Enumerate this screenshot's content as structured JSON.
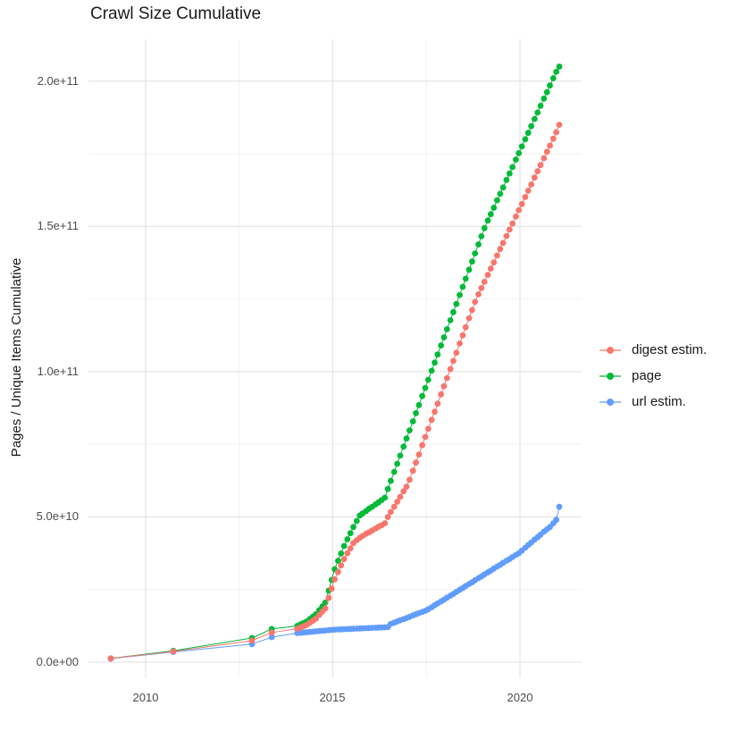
{
  "chart": {
    "title": "Crawl Size Cumulative",
    "y_axis_title": "Pages / Unique Items Cumulative"
  },
  "axes": {
    "x": {
      "labels": [
        "2010",
        "2015",
        "2020"
      ],
      "major_years": [
        2010,
        2015,
        2020
      ],
      "minor_years": [
        2012.5,
        2017.5
      ]
    },
    "y": {
      "labels": [
        "2.0e+11",
        "1.5e+11",
        "1.0e+11",
        "5.0e+10",
        "0.0e+00"
      ],
      "major_values_e9": [
        0,
        50,
        100,
        150,
        200
      ],
      "minor_values_e9": [
        25,
        75,
        125,
        175
      ]
    }
  },
  "legend": [
    {
      "label": "digest estim.",
      "color": "#F8766D"
    },
    {
      "label": "page",
      "color": "#00BA38"
    },
    {
      "label": "url estim.",
      "color": "#619CFF"
    }
  ],
  "colors": {
    "background": "#ffffff",
    "grid_major": "#e2e2e2",
    "grid_minor": "#efefef",
    "tick_text": "#4d4d4d",
    "digest": "#F8766D",
    "page": "#00BA38",
    "url": "#619CFF"
  },
  "chart_data": {
    "type": "line",
    "title": "Crawl Size Cumulative",
    "xlabel": "",
    "ylabel": "Pages / Unique Items Cumulative",
    "legend_position": "right",
    "grid": true,
    "xlim": [
      2008.5,
      2021.7
    ],
    "ylim_e9": [
      0,
      215
    ],
    "value_unit": "items, billions (1e9); y axis shown in scientific notation",
    "x": [
      2009.07,
      2010.74,
      2012.84,
      2013.37,
      2014.05,
      2014.14,
      2014.22,
      2014.3,
      2014.39,
      2014.47,
      2014.55,
      2014.64,
      2014.72,
      2014.8,
      2014.89,
      2014.97,
      2015.05,
      2015.14,
      2015.22,
      2015.3,
      2015.39,
      2015.47,
      2015.55,
      2015.64,
      2015.72,
      2015.8,
      2015.89,
      2015.97,
      2016.05,
      2016.14,
      2016.22,
      2016.3,
      2016.39,
      2016.47,
      2016.55,
      2016.64,
      2016.72,
      2016.8,
      2016.89,
      2016.97,
      2017.05,
      2017.14,
      2017.22,
      2017.3,
      2017.39,
      2017.47,
      2017.55,
      2017.64,
      2017.72,
      2017.8,
      2017.89,
      2017.97,
      2018.05,
      2018.14,
      2018.22,
      2018.3,
      2018.39,
      2018.47,
      2018.55,
      2018.64,
      2018.72,
      2018.8,
      2018.89,
      2018.97,
      2019.05,
      2019.14,
      2019.22,
      2019.3,
      2019.39,
      2019.47,
      2019.55,
      2019.64,
      2019.72,
      2019.8,
      2019.89,
      2019.97,
      2020.05,
      2020.14,
      2020.22,
      2020.3,
      2020.39,
      2020.47,
      2020.55,
      2020.64,
      2020.72,
      2020.8,
      2020.89,
      2020.97,
      2021.05
    ],
    "series": [
      {
        "name": "digest estim.",
        "color": "#F8766D",
        "values_e9": [
          1.3,
          3.7,
          7.4,
          10.2,
          11.5,
          12.0,
          12.4,
          12.8,
          13.6,
          14.3,
          15.0,
          16.3,
          17.4,
          18.5,
          22.1,
          25.3,
          28.5,
          31.0,
          33.3,
          35.5,
          37.5,
          39.2,
          41.0,
          42.0,
          42.8,
          43.5,
          44.2,
          44.7,
          45.3,
          46.0,
          46.6,
          47.1,
          47.8,
          50.0,
          51.7,
          53.5,
          55.2,
          56.9,
          58.8,
          60.4,
          62.8,
          65.9,
          68.7,
          71.5,
          74.7,
          77.5,
          80.3,
          83.4,
          86.2,
          89.0,
          92.2,
          95.0,
          97.8,
          100.9,
          103.7,
          106.5,
          109.7,
          112.5,
          115.3,
          118.4,
          121.2,
          124.0,
          126.6,
          128.8,
          130.9,
          133.3,
          135.5,
          137.6,
          140.0,
          142.2,
          144.3,
          146.7,
          148.9,
          151.0,
          153.4,
          155.6,
          157.7,
          160.1,
          162.3,
          164.4,
          166.8,
          169.0,
          171.1,
          173.5,
          175.7,
          177.8,
          180.2,
          182.4,
          185.0
        ]
      },
      {
        "name": "page",
        "color": "#00BA38",
        "values_e9": [
          1.3,
          3.9,
          8.3,
          11.4,
          12.5,
          13.0,
          13.5,
          14.0,
          14.9,
          15.7,
          16.5,
          17.9,
          19.2,
          20.5,
          24.6,
          28.3,
          32.0,
          34.9,
          37.4,
          40.0,
          42.3,
          44.4,
          46.5,
          48.6,
          50.5,
          51.2,
          52.0,
          52.8,
          53.5,
          54.3,
          55.0,
          55.8,
          56.6,
          59.6,
          62.4,
          65.5,
          68.3,
          71.1,
          74.2,
          77.0,
          79.8,
          82.9,
          85.7,
          88.5,
          91.6,
          94.4,
          97.2,
          100.3,
          103.1,
          105.9,
          109.0,
          111.8,
          114.6,
          117.7,
          120.5,
          123.3,
          126.4,
          129.2,
          132.0,
          135.1,
          137.9,
          140.7,
          143.8,
          146.6,
          149.4,
          152.0,
          154.2,
          156.4,
          159.0,
          161.2,
          163.4,
          166.0,
          168.2,
          170.4,
          173.0,
          175.2,
          177.5,
          180.0,
          182.2,
          184.5,
          187.0,
          189.2,
          191.5,
          194.0,
          196.2,
          198.5,
          201.0,
          203.2,
          205.0
        ]
      },
      {
        "name": "url estim.",
        "color": "#619CFF",
        "values_e9": [
          1.2,
          3.5,
          6.2,
          8.6,
          10.0,
          10.1,
          10.2,
          10.3,
          10.4,
          10.5,
          10.6,
          10.7,
          10.8,
          10.9,
          11.0,
          11.1,
          11.2,
          11.25,
          11.3,
          11.35,
          11.4,
          11.45,
          11.5,
          11.55,
          11.6,
          11.65,
          11.7,
          11.75,
          11.8,
          11.85,
          11.9,
          11.95,
          12.0,
          12.1,
          13.2,
          13.6,
          14.0,
          14.4,
          14.8,
          15.2,
          15.6,
          16.1,
          16.5,
          16.9,
          17.3,
          17.7,
          18.2,
          18.9,
          19.6,
          20.2,
          20.9,
          21.5,
          22.2,
          22.9,
          23.5,
          24.2,
          24.9,
          25.5,
          26.2,
          26.9,
          27.5,
          28.2,
          28.9,
          29.5,
          30.2,
          30.9,
          31.5,
          32.2,
          32.9,
          33.5,
          34.2,
          34.9,
          35.5,
          36.2,
          36.9,
          37.5,
          38.4,
          39.4,
          40.3,
          41.2,
          42.2,
          43.0,
          43.9,
          44.9,
          45.7,
          46.5,
          47.8,
          49.0,
          53.5
        ]
      }
    ]
  }
}
